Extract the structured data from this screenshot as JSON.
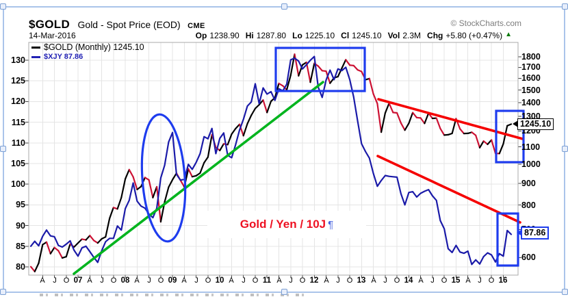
{
  "window": {
    "copyright": "© StockCharts.com"
  },
  "header": {
    "symbol": "$GOLD",
    "name": "Gold - Spot Price (EOD)",
    "exchange": "CME",
    "date": "14-Mar-2016",
    "quote": [
      {
        "label": "Op",
        "value": "1238.90"
      },
      {
        "label": "Hi",
        "value": "1287.80"
      },
      {
        "label": "Lo",
        "value": "1225.10"
      },
      {
        "label": "Cl",
        "value": "1245.10"
      },
      {
        "label": "Vol",
        "value": "2.3M"
      },
      {
        "label": "Chg",
        "value": "+5.80 (+0.47%)"
      }
    ],
    "chg_arrow": "▲",
    "chg_arrow_color": "#0b7a0b"
  },
  "legend": [
    {
      "label": "$GOLD (Monthly) 1245.10",
      "color": "#000000"
    },
    {
      "label": "$XJY 87.86",
      "color": "#2121b4"
    }
  ],
  "callouts": {
    "gold": "1245.10",
    "yen": "87.86"
  },
  "annotation": {
    "text": "Gold / Yen / 10J",
    "pilcrow": "¶"
  },
  "chart_data": {
    "type": "line",
    "title": "$GOLD Gold - Spot Price (EOD) CME",
    "interval": "monthly",
    "x_start": "2006-01",
    "x_end": "2016-03",
    "grid": true,
    "left_axis": {
      "scale": "linear",
      "range": [
        78,
        132
      ],
      "ticks": [
        130,
        125,
        120,
        115,
        110,
        105,
        100,
        95,
        90,
        85,
        80
      ]
    },
    "right_axis": {
      "scale": "log",
      "range": [
        560,
        1870
      ],
      "ticks": [
        1800,
        1700,
        1600,
        1500,
        1400,
        1300,
        1200,
        1100,
        1000,
        900,
        800,
        700,
        600
      ]
    },
    "x_tick_labels": [
      {
        "i": 3,
        "l": "A"
      },
      {
        "i": 6,
        "l": "J"
      },
      {
        "i": 9,
        "l": "O"
      },
      {
        "i": 12,
        "l": "07",
        "y": 1
      },
      {
        "i": 15,
        "l": "A"
      },
      {
        "i": 18,
        "l": "J"
      },
      {
        "i": 21,
        "l": "O"
      },
      {
        "i": 24,
        "l": "08",
        "y": 1
      },
      {
        "i": 27,
        "l": "A"
      },
      {
        "i": 30,
        "l": "J"
      },
      {
        "i": 33,
        "l": "O"
      },
      {
        "i": 36,
        "l": "09",
        "y": 1
      },
      {
        "i": 39,
        "l": "A"
      },
      {
        "i": 42,
        "l": "J"
      },
      {
        "i": 45,
        "l": "O"
      },
      {
        "i": 48,
        "l": "10",
        "y": 1
      },
      {
        "i": 51,
        "l": "A"
      },
      {
        "i": 54,
        "l": "J"
      },
      {
        "i": 57,
        "l": "O"
      },
      {
        "i": 60,
        "l": "11",
        "y": 1
      },
      {
        "i": 63,
        "l": "A"
      },
      {
        "i": 66,
        "l": "J"
      },
      {
        "i": 69,
        "l": "O"
      },
      {
        "i": 72,
        "l": "12",
        "y": 1
      },
      {
        "i": 75,
        "l": "A"
      },
      {
        "i": 78,
        "l": "J"
      },
      {
        "i": 81,
        "l": "O"
      },
      {
        "i": 84,
        "l": "13",
        "y": 1
      },
      {
        "i": 87,
        "l": "A"
      },
      {
        "i": 90,
        "l": "J"
      },
      {
        "i": 93,
        "l": "O"
      },
      {
        "i": 96,
        "l": "14",
        "y": 1
      },
      {
        "i": 99,
        "l": "A"
      },
      {
        "i": 102,
        "l": "J"
      },
      {
        "i": 105,
        "l": "O"
      },
      {
        "i": 108,
        "l": "15",
        "y": 1
      },
      {
        "i": 111,
        "l": "A"
      },
      {
        "i": 114,
        "l": "J"
      },
      {
        "i": 117,
        "l": "O"
      },
      {
        "i": 120,
        "l": "16",
        "y": 1
      }
    ],
    "series": [
      {
        "name": "$GOLD (Monthly)",
        "axis": "right",
        "style": "up-down-colored",
        "color_up": "#000000",
        "color_down": "#cc1133",
        "last": 1245.1,
        "values": [
          571,
          556,
          582,
          644,
          653,
          613,
          634,
          623,
          599,
          603,
          646,
          636,
          650,
          664,
          661,
          677,
          659,
          650,
          665,
          672,
          743,
          789,
          783,
          833,
          923,
          971,
          933,
          871,
          885,
          930,
          918,
          833,
          884,
          730,
          814,
          882,
          919,
          952,
          916,
          883,
          975,
          934,
          939,
          953,
          1008,
          1040,
          1175,
          1096,
          1078,
          1118,
          1113,
          1179,
          1215,
          1244,
          1169,
          1248,
          1307,
          1357,
          1385,
          1421,
          1327,
          1411,
          1439,
          1556,
          1536,
          1502,
          1628,
          1826,
          1622,
          1722,
          1746,
          1566,
          1737,
          1711,
          1668,
          1664,
          1558,
          1604,
          1615,
          1692,
          1771,
          1720,
          1715,
          1676,
          1661,
          1588,
          1598,
          1469,
          1394,
          1192,
          1323,
          1396,
          1327,
          1324,
          1253,
          1205,
          1251,
          1326,
          1291,
          1288,
          1250,
          1322,
          1285,
          1287,
          1216,
          1173,
          1175,
          1184,
          1283,
          1213,
          1183,
          1184,
          1191,
          1171,
          1095,
          1135,
          1115,
          1142,
          1061,
          1060,
          1118,
          1234,
          1245.1
        ]
      },
      {
        "name": "$XJY",
        "axis": "left",
        "style": "solid",
        "color": "#1a1aa8",
        "last": 87.86,
        "values": [
          85.0,
          86.2,
          85.1,
          87.4,
          88.9,
          87.5,
          87.3,
          85.2,
          84.8,
          85.5,
          86.3,
          84.0,
          82.6,
          84.6,
          85.0,
          83.7,
          82.3,
          81.1,
          83.9,
          86.1,
          86.9,
          86.9,
          89.9,
          88.9,
          94.1,
          96.1,
          100.3,
          95.9,
          94.7,
          94.2,
          92.8,
          91.9,
          94.2,
          101.5,
          104.6,
          110.2,
          112.5,
          102.4,
          101.0,
          101.2,
          104.8,
          103.6,
          105.3,
          107.4,
          111.5,
          111.0,
          113.5,
          107.4,
          111.1,
          112.4,
          107.0,
          106.4,
          109.5,
          113.1,
          115.7,
          118.9,
          119.9,
          124.3,
          119.5,
          123.3,
          121.8,
          122.4,
          120.3,
          123.1,
          122.6,
          124.2,
          130.1,
          130.5,
          129.8,
          127.9,
          128.9,
          130.0,
          130.9,
          123.5,
          121.0,
          125.2,
          127.6,
          125.3,
          127.9,
          127.5,
          128.3,
          125.3,
          121.1,
          115.3,
          109.8,
          107.9,
          106.3,
          102.6,
          99.5,
          100.9,
          102.1,
          101.9,
          101.8,
          101.7,
          97.7,
          95.0,
          98.0,
          98.2,
          96.9,
          97.8,
          98.3,
          98.7,
          97.2,
          96.1,
          91.2,
          89.2,
          84.4,
          83.5,
          85.2,
          83.6,
          83.3,
          83.8,
          80.6,
          81.7,
          80.7,
          82.5,
          83.4,
          82.9,
          81.2,
          83.2,
          82.6,
          88.8,
          87.86
        ]
      }
    ],
    "drawings": {
      "trendlines": [
        {
          "name": "uptrend-support",
          "color": "#00b41e",
          "x1": 108,
          "y1": 400,
          "x2": 472,
          "y2": 120,
          "w": 3.6
        },
        {
          "name": "gold-downtrend",
          "color": "#f50000",
          "x1": 553,
          "y1": 145,
          "x2": 764,
          "y2": 203,
          "w": 3.6
        },
        {
          "name": "yen-downtrend",
          "color": "#f50000",
          "x1": 552,
          "y1": 228,
          "x2": 760,
          "y2": 325,
          "w": 3.6
        }
      ],
      "ellipse": {
        "cx": 239,
        "cy": 260,
        "rx": 31,
        "ry": 93,
        "color": "#1e3cee",
        "w": 3.2
      },
      "rects": [
        {
          "name": "top-consolidation",
          "x": 403,
          "y": 70,
          "w": 130,
          "h": 63,
          "color": "#1e3cee"
        },
        {
          "name": "gold-breakout",
          "x": 725,
          "y": 162,
          "w": 40,
          "h": 75,
          "color": "#1e3cee"
        },
        {
          "name": "yen-breakout",
          "x": 727,
          "y": 312,
          "w": 30,
          "h": 76,
          "color": "#1e3cee"
        }
      ]
    }
  }
}
